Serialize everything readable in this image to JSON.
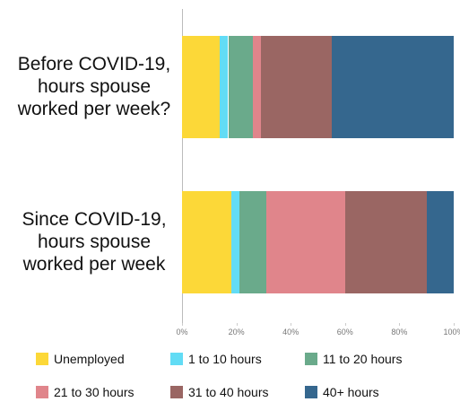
{
  "chart_data": {
    "type": "stacked-bar-horizontal",
    "categories": [
      "Before COVID-19,\nhours spouse\nworked per week?",
      "Since COVID-19,\nhours spouse\nworked per week"
    ],
    "series": [
      {
        "name": "Unemployed",
        "color": "#fcd838",
        "values": [
          14,
          18
        ]
      },
      {
        "name": "1 to 10 hours",
        "color": "#62dcf5",
        "values": [
          3,
          3
        ]
      },
      {
        "name": "11 to 20 hours",
        "color": "#6aaa8b",
        "values": [
          9,
          10
        ]
      },
      {
        "name": "21 to 30 hours",
        "color": "#e0858b",
        "values": [
          3,
          29
        ]
      },
      {
        "name": "31 to 40 hours",
        "color": "#9a6663",
        "values": [
          26,
          30
        ]
      },
      {
        "name": "40+ hours",
        "color": "#35678e",
        "values": [
          45,
          10
        ]
      }
    ],
    "xlim": [
      0,
      100
    ],
    "xticks": [
      {
        "value": 0,
        "label": "0%"
      },
      {
        "value": 20,
        "label": "20%"
      },
      {
        "value": 40,
        "label": "40%"
      },
      {
        "value": 60,
        "label": "60%"
      },
      {
        "value": 80,
        "label": "80%"
      },
      {
        "value": 100,
        "label": "100%"
      }
    ],
    "legend": "bottom"
  }
}
